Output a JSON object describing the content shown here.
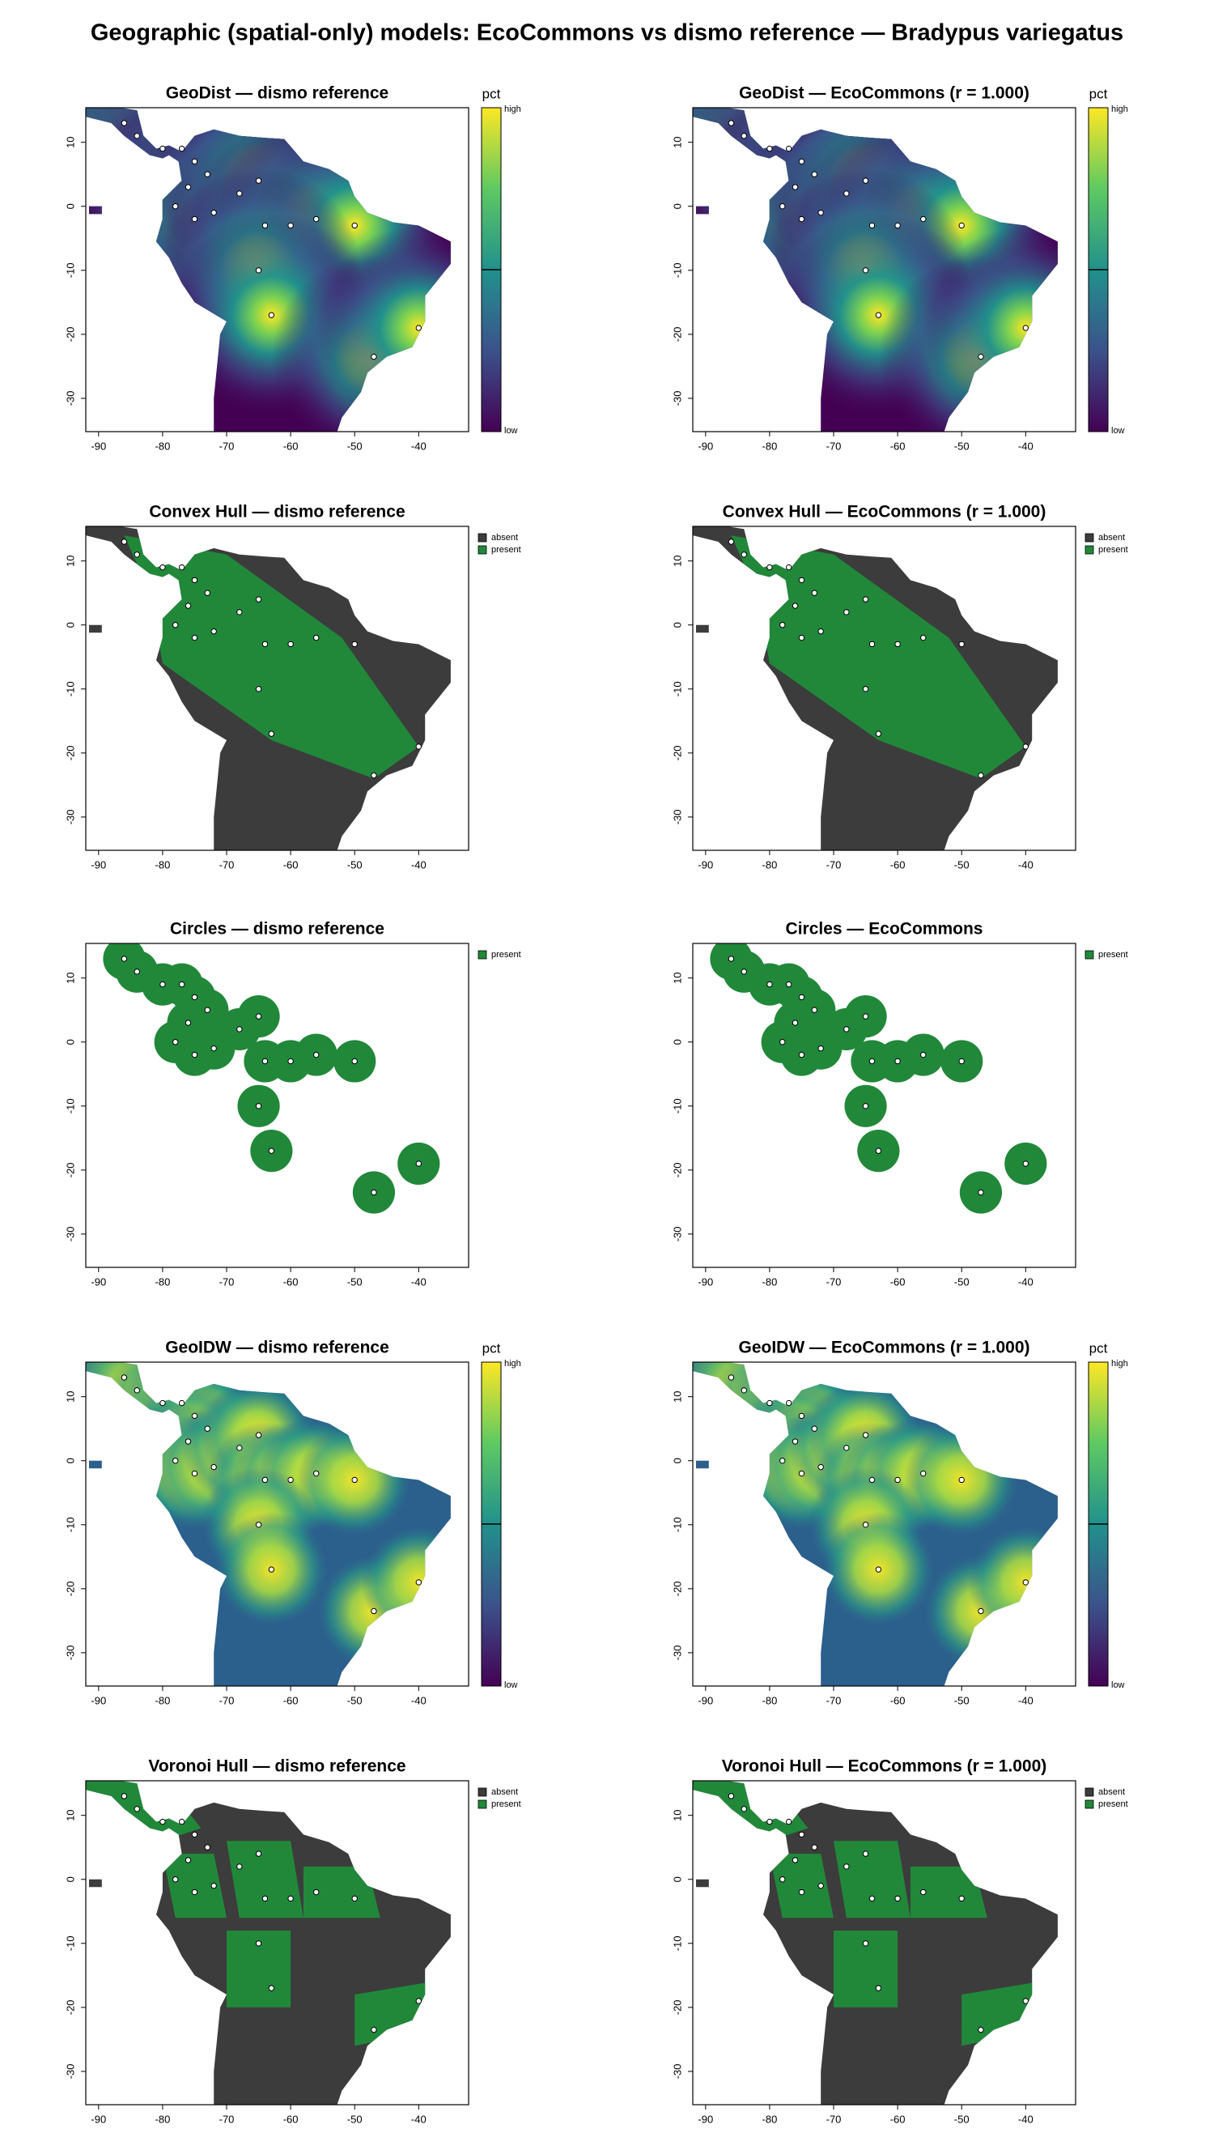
{
  "title": "Geographic (spatial-only) models: EcoCommons vs dismo reference  —  Bradypus variegatus",
  "chart_data": [
    {
      "type": "map",
      "style": "geodist",
      "title": "GeoDist — dismo reference",
      "xlim": [
        -92,
        -32.2
      ],
      "ylim": [
        -35.2,
        15.4
      ],
      "xticks": [
        -90,
        -80,
        -70,
        -60,
        -50,
        -40
      ],
      "yticks": [
        -30,
        -20,
        -10,
        0,
        10
      ],
      "x": [
        -86,
        -84,
        -80,
        -77,
        -75,
        -73,
        -76,
        -78,
        -75,
        -72,
        -68,
        -65,
        -64,
        -60,
        -56,
        -50,
        -65,
        -63,
        -47,
        -40
      ],
      "y": [
        13,
        11,
        9,
        9,
        7,
        5,
        3,
        0,
        -2,
        -1,
        2,
        4,
        -3,
        -3,
        -2,
        -3,
        -10,
        -17,
        -23.5,
        -19
      ],
      "legend": {
        "title": "pct",
        "labels": [
          "high",
          "low"
        ],
        "colors": [
          "#fde725",
          "#5ec962",
          "#21918c",
          "#3b528b",
          "#440154"
        ]
      }
    },
    {
      "type": "map",
      "style": "geodist",
      "title": "GeoDist — EcoCommons  (r = 1.000)",
      "xlim": [
        -92,
        -32.2
      ],
      "ylim": [
        -35.2,
        15.4
      ],
      "xticks": [
        -90,
        -80,
        -70,
        -60,
        -50,
        -40
      ],
      "yticks": [
        -30,
        -20,
        -10,
        0,
        10
      ],
      "x": [
        -86,
        -84,
        -80,
        -77,
        -75,
        -73,
        -76,
        -78,
        -75,
        -72,
        -68,
        -65,
        -64,
        -60,
        -56,
        -50,
        -65,
        -63,
        -47,
        -40
      ],
      "y": [
        13,
        11,
        9,
        9,
        7,
        5,
        3,
        0,
        -2,
        -1,
        2,
        4,
        -3,
        -3,
        -2,
        -3,
        -10,
        -17,
        -23.5,
        -19
      ],
      "legend": {
        "title": "pct",
        "labels": [
          "high",
          "low"
        ],
        "colors": [
          "#fde725",
          "#5ec962",
          "#21918c",
          "#3b528b",
          "#440154"
        ]
      }
    },
    {
      "type": "map",
      "style": "hull",
      "title": "Convex Hull — dismo reference",
      "xlim": [
        -92,
        -32.2
      ],
      "ylim": [
        -35.2,
        15.4
      ],
      "xticks": [
        -90,
        -80,
        -70,
        -60,
        -50,
        -40
      ],
      "yticks": [
        -30,
        -20,
        -10,
        0,
        10
      ],
      "x": [
        -86,
        -84,
        -80,
        -77,
        -75,
        -73,
        -76,
        -78,
        -75,
        -72,
        -68,
        -65,
        -64,
        -60,
        -56,
        -50,
        -65,
        -63,
        -47,
        -40
      ],
      "y": [
        13,
        11,
        9,
        9,
        7,
        5,
        3,
        0,
        -2,
        -1,
        2,
        4,
        -3,
        -3,
        -2,
        -3,
        -10,
        -17,
        -23.5,
        -19
      ],
      "legend": {
        "labels": [
          "absent",
          "present"
        ],
        "colors": [
          "#3c3c3c",
          "#21883a"
        ]
      }
    },
    {
      "type": "map",
      "style": "hull",
      "title": "Convex Hull — EcoCommons  (r = 1.000)",
      "xlim": [
        -92,
        -32.2
      ],
      "ylim": [
        -35.2,
        15.4
      ],
      "xticks": [
        -90,
        -80,
        -70,
        -60,
        -50,
        -40
      ],
      "yticks": [
        -30,
        -20,
        -10,
        0,
        10
      ],
      "x": [
        -86,
        -84,
        -80,
        -77,
        -75,
        -73,
        -76,
        -78,
        -75,
        -72,
        -68,
        -65,
        -64,
        -60,
        -56,
        -50,
        -65,
        -63,
        -47,
        -40
      ],
      "y": [
        13,
        11,
        9,
        9,
        7,
        5,
        3,
        0,
        -2,
        -1,
        2,
        4,
        -3,
        -3,
        -2,
        -3,
        -10,
        -17,
        -23.5,
        -19
      ],
      "legend": {
        "labels": [
          "absent",
          "present"
        ],
        "colors": [
          "#3c3c3c",
          "#21883a"
        ]
      }
    },
    {
      "type": "map",
      "style": "circles",
      "title": "Circles — dismo reference",
      "xlim": [
        -92,
        -32.2
      ],
      "ylim": [
        -35.2,
        15.4
      ],
      "xticks": [
        -90,
        -80,
        -70,
        -60,
        -50,
        -40
      ],
      "yticks": [
        -30,
        -20,
        -10,
        0,
        10
      ],
      "x": [
        -86,
        -84,
        -80,
        -77,
        -75,
        -73,
        -76,
        -78,
        -75,
        -72,
        -68,
        -65,
        -64,
        -60,
        -56,
        -50,
        -65,
        -63,
        -47,
        -40
      ],
      "y": [
        13,
        11,
        9,
        9,
        7,
        5,
        3,
        0,
        -2,
        -1,
        2,
        4,
        -3,
        -3,
        -2,
        -3,
        -10,
        -17,
        -23.5,
        -19
      ],
      "legend": {
        "labels": [
          "present"
        ],
        "colors": [
          "#21883a"
        ]
      }
    },
    {
      "type": "map",
      "style": "circles",
      "title": "Circles — EcoCommons",
      "xlim": [
        -92,
        -32.2
      ],
      "ylim": [
        -35.2,
        15.4
      ],
      "xticks": [
        -90,
        -80,
        -70,
        -60,
        -50,
        -40
      ],
      "yticks": [
        -30,
        -20,
        -10,
        0,
        10
      ],
      "x": [
        -86,
        -84,
        -80,
        -77,
        -75,
        -73,
        -76,
        -78,
        -75,
        -72,
        -68,
        -65,
        -64,
        -60,
        -56,
        -50,
        -65,
        -63,
        -47,
        -40
      ],
      "y": [
        13,
        11,
        9,
        9,
        7,
        5,
        3,
        0,
        -2,
        -1,
        2,
        4,
        -3,
        -3,
        -2,
        -3,
        -10,
        -17,
        -23.5,
        -19
      ],
      "legend": {
        "labels": [
          "present"
        ],
        "colors": [
          "#21883a"
        ]
      }
    },
    {
      "type": "map",
      "style": "idw",
      "title": "GeoIDW — dismo reference",
      "xlim": [
        -92,
        -32.2
      ],
      "ylim": [
        -35.2,
        15.4
      ],
      "xticks": [
        -90,
        -80,
        -70,
        -60,
        -50,
        -40
      ],
      "yticks": [
        -30,
        -20,
        -10,
        0,
        10
      ],
      "x": [
        -86,
        -84,
        -80,
        -77,
        -75,
        -73,
        -76,
        -78,
        -75,
        -72,
        -68,
        -65,
        -64,
        -60,
        -56,
        -50,
        -65,
        -63,
        -47,
        -40
      ],
      "y": [
        13,
        11,
        9,
        9,
        7,
        5,
        3,
        0,
        -2,
        -1,
        2,
        4,
        -3,
        -3,
        -2,
        -3,
        -10,
        -17,
        -23.5,
        -19
      ],
      "legend": {
        "title": "pct",
        "labels": [
          "high",
          "low"
        ],
        "colors": [
          "#fde725",
          "#5ec962",
          "#21918c",
          "#3b528b",
          "#440154"
        ]
      }
    },
    {
      "type": "map",
      "style": "idw",
      "title": "GeoIDW — EcoCommons  (r = 1.000)",
      "xlim": [
        -92,
        -32.2
      ],
      "ylim": [
        -35.2,
        15.4
      ],
      "xticks": [
        -90,
        -80,
        -70,
        -60,
        -50,
        -40
      ],
      "yticks": [
        -30,
        -20,
        -10,
        0,
        10
      ],
      "x": [
        -86,
        -84,
        -80,
        -77,
        -75,
        -73,
        -76,
        -78,
        -75,
        -72,
        -68,
        -65,
        -64,
        -60,
        -56,
        -50,
        -65,
        -63,
        -47,
        -40
      ],
      "y": [
        13,
        11,
        9,
        9,
        7,
        5,
        3,
        0,
        -2,
        -1,
        2,
        4,
        -3,
        -3,
        -2,
        -3,
        -10,
        -17,
        -23.5,
        -19
      ],
      "legend": {
        "title": "pct",
        "labels": [
          "high",
          "low"
        ],
        "colors": [
          "#fde725",
          "#5ec962",
          "#21918c",
          "#3b528b",
          "#440154"
        ]
      }
    },
    {
      "type": "map",
      "style": "voronoi",
      "title": "Voronoi Hull — dismo reference",
      "xlim": [
        -92,
        -32.2
      ],
      "ylim": [
        -35.2,
        15.4
      ],
      "xticks": [
        -90,
        -80,
        -70,
        -60,
        -50,
        -40
      ],
      "yticks": [
        -30,
        -20,
        -10,
        0,
        10
      ],
      "x": [
        -86,
        -84,
        -80,
        -77,
        -75,
        -73,
        -76,
        -78,
        -75,
        -72,
        -68,
        -65,
        -64,
        -60,
        -56,
        -50,
        -65,
        -63,
        -47,
        -40
      ],
      "y": [
        13,
        11,
        9,
        9,
        7,
        5,
        3,
        0,
        -2,
        -1,
        2,
        4,
        -3,
        -3,
        -2,
        -3,
        -10,
        -17,
        -23.5,
        -19
      ],
      "legend": {
        "labels": [
          "absent",
          "present"
        ],
        "colors": [
          "#3c3c3c",
          "#21883a"
        ]
      }
    },
    {
      "type": "map",
      "style": "voronoi",
      "title": "Voronoi Hull — EcoCommons  (r = 1.000)",
      "xlim": [
        -92,
        -32.2
      ],
      "ylim": [
        -35.2,
        15.4
      ],
      "xticks": [
        -90,
        -80,
        -70,
        -60,
        -50,
        -40
      ],
      "yticks": [
        -30,
        -20,
        -10,
        0,
        10
      ],
      "x": [
        -86,
        -84,
        -80,
        -77,
        -75,
        -73,
        -76,
        -78,
        -75,
        -72,
        -68,
        -65,
        -64,
        -60,
        -56,
        -50,
        -65,
        -63,
        -47,
        -40
      ],
      "y": [
        13,
        11,
        9,
        9,
        7,
        5,
        3,
        0,
        -2,
        -1,
        2,
        4,
        -3,
        -3,
        -2,
        -3,
        -10,
        -17,
        -23.5,
        -19
      ],
      "legend": {
        "labels": [
          "absent",
          "present"
        ],
        "colors": [
          "#3c3c3c",
          "#21883a"
        ]
      }
    }
  ]
}
